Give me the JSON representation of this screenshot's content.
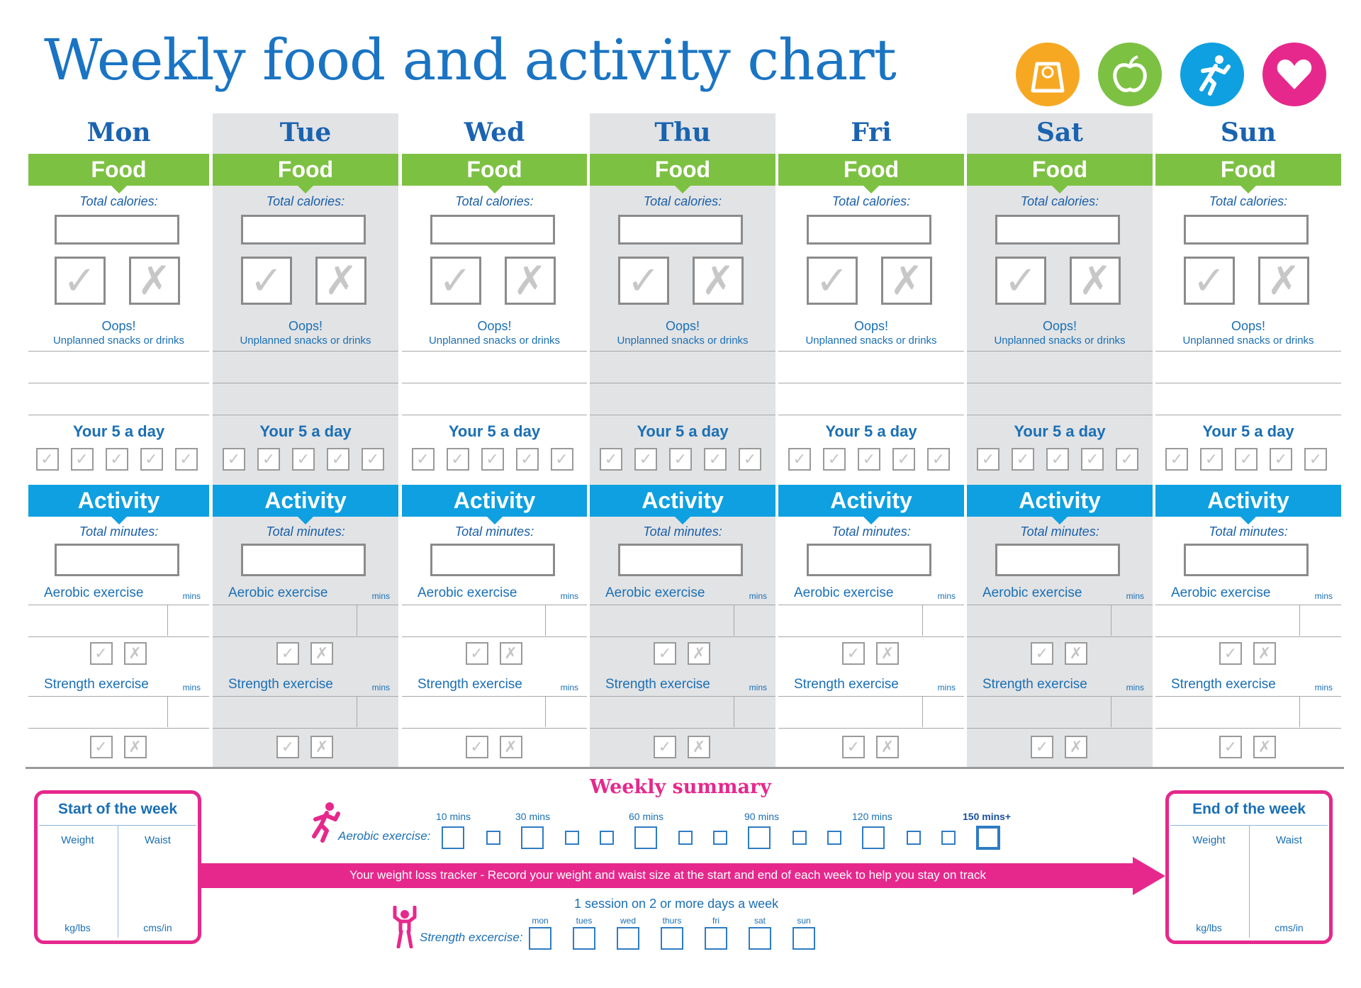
{
  "title": "Weekly  food and activity chart",
  "icons": [
    {
      "name": "scales-icon",
      "color": "#f7a823"
    },
    {
      "name": "apple-icon",
      "color": "#7dc143"
    },
    {
      "name": "runner-icon",
      "color": "#0ea0e0"
    },
    {
      "name": "heart-icon",
      "color": "#e6288c"
    }
  ],
  "day_labels": {
    "food": "Food",
    "total_calories": "Total calories:",
    "oops": "Oops!",
    "unplanned": "Unplanned snacks or drinks",
    "five_a_day": "Your 5 a day",
    "activity": "Activity",
    "total_minutes": "Total minutes:",
    "aerobic": "Aerobic exercise",
    "strength": "Strength exercise",
    "mins": "mins"
  },
  "days": [
    {
      "name": "Mon"
    },
    {
      "name": "Tue"
    },
    {
      "name": "Wed"
    },
    {
      "name": "Thu"
    },
    {
      "name": "Fri"
    },
    {
      "name": "Sat"
    },
    {
      "name": "Sun"
    }
  ],
  "summary": {
    "title": "Weekly summary",
    "start": {
      "title": "Start of the week",
      "weight": "Weight",
      "waist": "Waist",
      "weight_unit": "kg/lbs",
      "waist_unit": "cms/in"
    },
    "end": {
      "title": "End of the week",
      "weight": "Weight",
      "waist": "Waist",
      "weight_unit": "kg/lbs",
      "waist_unit": "cms/in"
    },
    "tracker": "Your weight loss tracker - Record your weight and waist size at the start and end of each week to help you stay on track",
    "aerobic_label": "Aerobic exercise:",
    "aerobic_ticks": [
      "10 mins",
      "30 mins",
      "60 mins",
      "90 mins",
      "120 mins",
      "150 mins+"
    ],
    "session_note": "1 session on 2 or more days a week",
    "strength_label": "Strength excercise:",
    "strength_days": [
      "mon",
      "tues",
      "wed",
      "thurs",
      "fri",
      "sat",
      "sun"
    ]
  }
}
